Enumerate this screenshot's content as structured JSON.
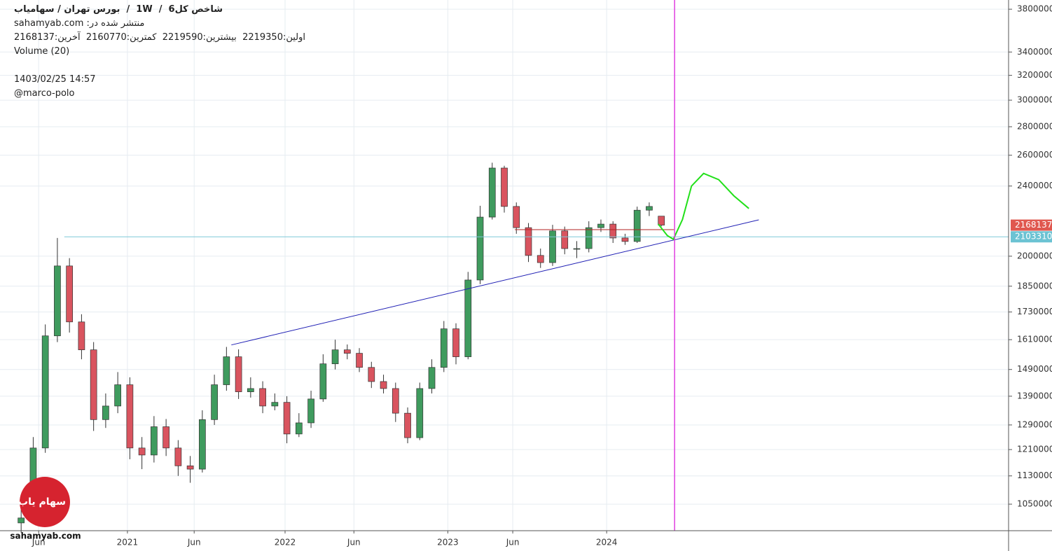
{
  "chart_data": {
    "type": "candlestick",
    "title": "شاخص کل6  /  1W  /  بورس تهران / سهامیاب",
    "subtitle": "منتشر شده در: sahamyab.com",
    "ohlc_text": "اولین:2219350  بیشترین:2219590  کمترین:2160770  آخرین:2168137",
    "volume_label": "Volume (20)",
    "timestamp": "1403/02/25 14:57",
    "author": "@marco-polo",
    "logo_text": "سهام یاب",
    "watermark": "sahamyab.com",
    "log_y": true,
    "grid": true,
    "up_color": "#3f9b5e",
    "down_color": "#d9545f",
    "xlim": [
      0,
      334
    ],
    "xticks": [
      {
        "value": 12.8,
        "label": "Jun"
      },
      {
        "value": 42.2,
        "label": "2021"
      },
      {
        "value": 64.3,
        "label": "Jun"
      },
      {
        "value": 94.4,
        "label": "2022"
      },
      {
        "value": 117.2,
        "label": "Jun"
      },
      {
        "value": 148.3,
        "label": "2023"
      },
      {
        "value": 169.8,
        "label": "Jun"
      },
      {
        "value": 200.9,
        "label": "2024"
      }
    ],
    "ylim": [
      980000,
      3892000
    ],
    "yticks": [
      1050000,
      1130000,
      1210000,
      1290000,
      1390000,
      1490000,
      1610000,
      1730000,
      1850000,
      2000000,
      2400000,
      2600000,
      2800000,
      3000000,
      3200000,
      3400000,
      3800000
    ],
    "x": [
      7,
      11,
      15,
      19,
      23,
      27,
      31,
      35,
      39,
      43,
      47,
      51,
      55,
      59,
      63,
      67,
      71,
      75,
      79,
      83,
      87,
      91,
      95,
      99,
      103,
      107,
      111,
      115,
      119,
      123,
      127,
      131,
      135,
      139,
      143,
      147,
      151,
      155,
      159,
      163,
      167,
      171,
      175,
      179,
      183,
      187,
      191,
      195,
      199,
      203,
      207,
      211,
      215,
      219
    ],
    "open": [
      1000000,
      1013000,
      1215000,
      1626000,
      1950000,
      1686000,
      1568000,
      1308000,
      1355000,
      1432000,
      1215000,
      1193000,
      1284000,
      1215000,
      1160000,
      1150000,
      1308000,
      1432000,
      1540000,
      1406000,
      1418000,
      1355000,
      1368000,
      1260000,
      1297000,
      1380000,
      1512000,
      1568000,
      1554000,
      1498000,
      1444000,
      1418000,
      1330000,
      1248000,
      1418000,
      1498000,
      1656000,
      1540000,
      1880000,
      2214000,
      2515000,
      2276000,
      2154000,
      2004000,
      1967000,
      2136000,
      2040000,
      2040000,
      2154000,
      2174000,
      2097000,
      2078000,
      2254000,
      2219350
    ],
    "high": [
      1045000,
      1250000,
      1675000,
      2097000,
      1990000,
      1720000,
      1600000,
      1400000,
      1480000,
      1460000,
      1250000,
      1320000,
      1310000,
      1240000,
      1190000,
      1340000,
      1470000,
      1580000,
      1570000,
      1460000,
      1445000,
      1400000,
      1390000,
      1330000,
      1410000,
      1550000,
      1610000,
      1590000,
      1575000,
      1520000,
      1470000,
      1440000,
      1350000,
      1440000,
      1530000,
      1690000,
      1680000,
      1920000,
      2280000,
      2550000,
      2530000,
      2300000,
      2180000,
      2040000,
      2170000,
      2160000,
      2080000,
      2190000,
      2200000,
      2190000,
      2120000,
      2275000,
      2300000,
      2219590
    ],
    "low": [
      975000,
      1000000,
      1200000,
      1600000,
      1640000,
      1530000,
      1270000,
      1280000,
      1330000,
      1180000,
      1150000,
      1170000,
      1190000,
      1130000,
      1110000,
      1140000,
      1290000,
      1410000,
      1380000,
      1385000,
      1330000,
      1340000,
      1230000,
      1250000,
      1280000,
      1370000,
      1490000,
      1530000,
      1480000,
      1420000,
      1400000,
      1300000,
      1230000,
      1240000,
      1400000,
      1480000,
      1510000,
      1530000,
      1860000,
      2200000,
      2240000,
      2120000,
      1970000,
      1940000,
      1950000,
      2010000,
      1990000,
      2020000,
      2130000,
      2070000,
      2060000,
      2070000,
      2220000,
      2160770
    ],
    "close": [
      1013000,
      1215000,
      1626000,
      1950000,
      1686000,
      1568000,
      1308000,
      1355000,
      1432000,
      1215000,
      1193000,
      1284000,
      1215000,
      1160000,
      1150000,
      1308000,
      1432000,
      1540000,
      1406000,
      1418000,
      1355000,
      1368000,
      1260000,
      1297000,
      1380000,
      1512000,
      1568000,
      1554000,
      1498000,
      1444000,
      1418000,
      1330000,
      1248000,
      1418000,
      1498000,
      1656000,
      1540000,
      1880000,
      2214000,
      2515000,
      2276000,
      2154000,
      2004000,
      1967000,
      2136000,
      2040000,
      2040000,
      2154000,
      2174000,
      2097000,
      2078000,
      2254000,
      2276000,
      2168137
    ],
    "drawings": [
      {
        "color": "#7ec8d8",
        "points": [
          [
            21.3,
            2103310
          ],
          [
            334,
            2103310
          ]
        ]
      },
      {
        "color": "#b22222",
        "points": [
          [
            170.5,
            2143000
          ],
          [
            223.2,
            2143000
          ]
        ]
      },
      {
        "color": "#1f1fb4",
        "points": [
          [
            76.6,
            1588000
          ],
          [
            251.3,
            2198000
          ]
        ]
      },
      {
        "color": "#22e01a",
        "points": [
          [
            218,
            2174000
          ],
          [
            221,
            2110000
          ],
          [
            223,
            2090000
          ],
          [
            226,
            2200000
          ],
          [
            229,
            2400000
          ],
          [
            233,
            2480000
          ],
          [
            238,
            2440000
          ],
          [
            243,
            2340000
          ],
          [
            248,
            2264000
          ]
        ]
      }
    ],
    "vertical_line": {
      "x": 223.4,
      "color": "#e040e0"
    },
    "price_labels": [
      {
        "value": 2168137,
        "color": "#e0584f"
      },
      {
        "value": 2103310,
        "color": "#6cc3d3"
      }
    ]
  }
}
